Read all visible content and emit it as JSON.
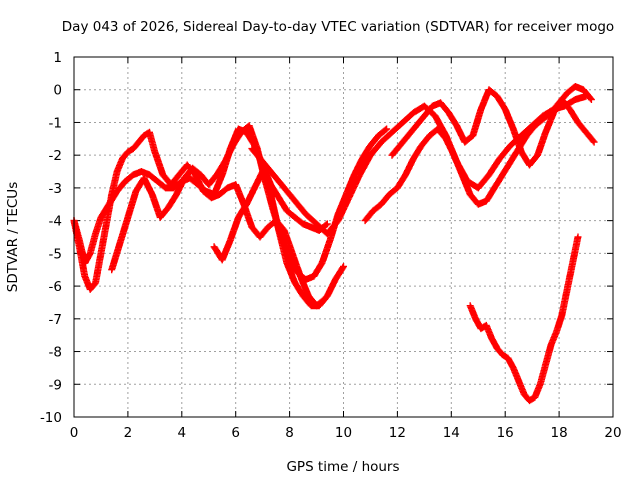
{
  "chart_data": {
    "type": "scatter",
    "title": "Day 043 of 2026, Sidereal Day-to-day VTEC variation (SDTVAR) for receiver mogo",
    "xlabel": "GPS time / hours",
    "ylabel": "SDTVAR / TECUs",
    "xlim": [
      0,
      20
    ],
    "ylim": [
      -10,
      1
    ],
    "xticks": [
      0,
      2,
      4,
      6,
      8,
      10,
      12,
      14,
      16,
      18,
      20
    ],
    "yticks": [
      1,
      0,
      -1,
      -2,
      -3,
      -4,
      -5,
      -6,
      -7,
      -8,
      -9,
      -10
    ],
    "grid": true,
    "marker": "+",
    "color": "#ff0000",
    "series": [
      {
        "name": "trace-1",
        "x": [
          0.0,
          0.2,
          0.4,
          0.6,
          0.8,
          1.0,
          1.3,
          1.6,
          1.9,
          2.2,
          2.5,
          2.8,
          3.1,
          3.4,
          3.7,
          4.0,
          4.3,
          4.6,
          4.9,
          5.2,
          5.5,
          5.8,
          6.1,
          6.4,
          6.7,
          7.0,
          7.3,
          7.6,
          7.9,
          8.2,
          8.5,
          8.8,
          9.1,
          9.4
        ],
        "y": [
          -4.0,
          -4.6,
          -5.3,
          -5.0,
          -4.4,
          -3.9,
          -3.5,
          -3.1,
          -2.8,
          -2.6,
          -2.5,
          -2.6,
          -2.8,
          -3.0,
          -3.0,
          -2.8,
          -2.7,
          -2.9,
          -3.1,
          -3.2,
          -2.6,
          -1.8,
          -1.2,
          -1.3,
          -1.7,
          -2.3,
          -2.9,
          -3.3,
          -3.7,
          -3.9,
          -4.1,
          -4.2,
          -4.3,
          -4.1
        ]
      },
      {
        "name": "trace-2",
        "x": [
          0.0,
          0.2,
          0.4,
          0.6,
          0.8,
          1.0,
          1.2,
          1.4,
          1.6,
          1.8,
          2.0,
          2.2,
          2.4,
          2.6,
          2.8,
          3.0,
          3.3,
          3.6,
          3.9,
          4.2,
          4.5,
          4.8,
          5.1,
          5.4,
          5.7,
          6.0,
          6.3,
          6.6,
          6.9,
          7.2,
          7.5,
          7.8,
          8.1,
          8.4,
          8.7,
          9.0,
          9.3
        ],
        "y": [
          -4.0,
          -4.8,
          -5.7,
          -6.1,
          -5.9,
          -5.0,
          -4.1,
          -3.2,
          -2.5,
          -2.1,
          -1.9,
          -1.8,
          -1.6,
          -1.4,
          -1.3,
          -1.9,
          -2.6,
          -2.9,
          -2.6,
          -2.3,
          -2.6,
          -3.1,
          -3.3,
          -3.2,
          -3.0,
          -2.9,
          -3.5,
          -4.2,
          -4.5,
          -4.2,
          -4.0,
          -4.3,
          -5.0,
          -5.7,
          -6.3,
          -6.6,
          -6.4
        ]
      },
      {
        "name": "trace-3",
        "x": [
          1.4,
          1.7,
          2.0,
          2.3,
          2.6,
          2.9,
          3.2,
          3.5,
          3.8,
          4.1,
          4.4,
          4.7,
          5.0,
          5.3,
          5.6,
          5.9,
          6.2,
          6.5,
          6.8,
          7.1,
          7.4,
          7.7,
          8.0,
          8.3,
          8.6,
          8.9,
          9.2,
          9.5,
          9.8,
          10.1,
          10.4,
          10.7,
          11.0,
          11.3,
          11.6
        ],
        "y": [
          -5.5,
          -4.7,
          -3.9,
          -3.1,
          -2.7,
          -3.2,
          -3.9,
          -3.6,
          -3.2,
          -2.7,
          -2.4,
          -2.6,
          -2.9,
          -2.6,
          -2.2,
          -1.7,
          -1.3,
          -1.1,
          -1.8,
          -2.8,
          -3.7,
          -4.5,
          -5.2,
          -5.6,
          -5.8,
          -5.7,
          -5.3,
          -4.6,
          -3.8,
          -3.2,
          -2.6,
          -2.1,
          -1.7,
          -1.4,
          -1.2
        ]
      },
      {
        "name": "trace-4",
        "x": [
          5.2,
          5.5,
          5.8,
          6.1,
          6.4,
          6.7,
          7.0,
          7.3,
          7.6,
          7.9,
          8.2,
          8.5,
          8.8,
          9.1,
          9.4,
          9.7,
          10.0
        ],
        "y": [
          -4.8,
          -5.2,
          -4.6,
          -3.9,
          -3.5,
          -3.0,
          -2.5,
          -3.2,
          -4.3,
          -5.3,
          -5.9,
          -6.3,
          -6.6,
          -6.6,
          -6.3,
          -5.8,
          -5.4
        ]
      },
      {
        "name": "trace-5",
        "x": [
          6.6,
          7.0,
          7.4,
          7.8,
          8.2,
          8.6,
          9.0,
          9.4,
          9.8,
          10.2,
          10.6,
          11.0,
          11.4,
          11.8,
          12.2,
          12.6,
          13.0,
          13.4,
          13.8,
          14.2,
          14.6,
          15.0,
          15.4,
          15.8,
          16.2,
          16.6,
          17.0,
          17.4,
          17.8,
          18.2,
          18.6,
          19.0
        ],
        "y": [
          -1.8,
          -2.2,
          -2.6,
          -3.0,
          -3.4,
          -3.8,
          -4.1,
          -4.4,
          -4.0,
          -3.3,
          -2.6,
          -2.0,
          -1.6,
          -1.3,
          -1.0,
          -0.7,
          -0.5,
          -0.8,
          -1.4,
          -2.2,
          -2.8,
          -3.0,
          -2.6,
          -2.1,
          -1.7,
          -1.4,
          -1.1,
          -0.8,
          -0.6,
          -0.5,
          -0.3,
          -0.2
        ]
      },
      {
        "name": "trace-6",
        "x": [
          10.8,
          11.1,
          11.4,
          11.7,
          12.0,
          12.3,
          12.6,
          12.9,
          13.2,
          13.5,
          13.8,
          14.1,
          14.4,
          14.7,
          15.0,
          15.3,
          15.6,
          15.9,
          16.2,
          16.5,
          16.8,
          17.1,
          17.4,
          17.7,
          18.0,
          18.3,
          18.6,
          18.9,
          19.2
        ],
        "y": [
          -4.0,
          -3.7,
          -3.5,
          -3.2,
          -3.0,
          -2.6,
          -2.1,
          -1.7,
          -1.4,
          -1.2,
          -1.5,
          -2.0,
          -2.6,
          -3.2,
          -3.5,
          -3.4,
          -3.0,
          -2.6,
          -2.2,
          -1.8,
          -1.4,
          -1.1,
          -0.9,
          -0.7,
          -0.4,
          -0.1,
          0.1,
          0.0,
          -0.3
        ]
      },
      {
        "name": "trace-7",
        "x": [
          11.8,
          12.1,
          12.4,
          12.7,
          13.0,
          13.3,
          13.6,
          13.9,
          14.2,
          14.5,
          14.8,
          15.1,
          15.4,
          15.7,
          16.0,
          16.3,
          16.6,
          16.9,
          17.2,
          17.5,
          17.8,
          18.1,
          18.4,
          18.7,
          19.0,
          19.3
        ],
        "y": [
          -2.0,
          -1.7,
          -1.4,
          -1.1,
          -0.8,
          -0.5,
          -0.4,
          -0.7,
          -1.1,
          -1.6,
          -1.4,
          -0.6,
          0.0,
          -0.2,
          -0.6,
          -1.2,
          -1.9,
          -2.3,
          -2.0,
          -1.3,
          -0.7,
          -0.3,
          -0.6,
          -1.0,
          -1.3,
          -1.6
        ]
      },
      {
        "name": "trace-8",
        "x": [
          14.7,
          14.9,
          15.1,
          15.3,
          15.5,
          15.7,
          15.9,
          16.1,
          16.3,
          16.5,
          16.7,
          16.9,
          17.1,
          17.3,
          17.5,
          17.7,
          17.9,
          18.1,
          18.3,
          18.5,
          18.7
        ],
        "y": [
          -6.6,
          -7.0,
          -7.3,
          -7.2,
          -7.6,
          -7.9,
          -8.1,
          -8.2,
          -8.5,
          -8.9,
          -9.3,
          -9.5,
          -9.4,
          -9.0,
          -8.4,
          -7.8,
          -7.4,
          -6.9,
          -6.1,
          -5.3,
          -4.5
        ]
      }
    ]
  }
}
